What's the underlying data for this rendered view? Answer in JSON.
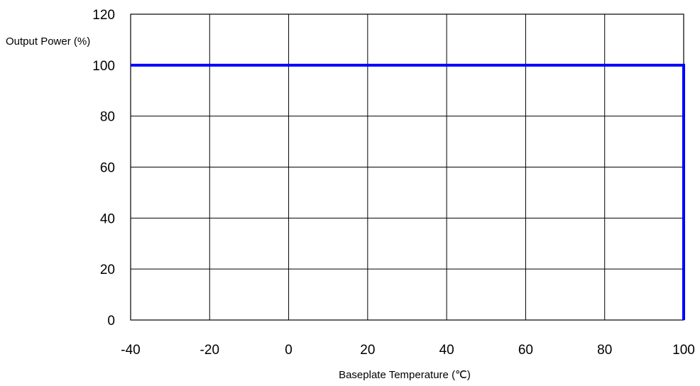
{
  "chart_data": {
    "type": "line",
    "title": "",
    "xlabel": "Baseplate Temperature (℃)",
    "ylabel": "Output Power (%)",
    "xlim": [
      -40,
      100
    ],
    "ylim": [
      0,
      120
    ],
    "x_ticks": [
      "-40",
      "-20",
      "0",
      "20",
      "40",
      "60",
      "80",
      "100"
    ],
    "y_ticks": [
      "0",
      "20",
      "40",
      "60",
      "80",
      "100",
      "120"
    ],
    "grid": true,
    "series": [
      {
        "color": "#0000ff",
        "x": [
          -40,
          100,
          100
        ],
        "y": [
          100,
          100,
          0
        ]
      }
    ]
  }
}
